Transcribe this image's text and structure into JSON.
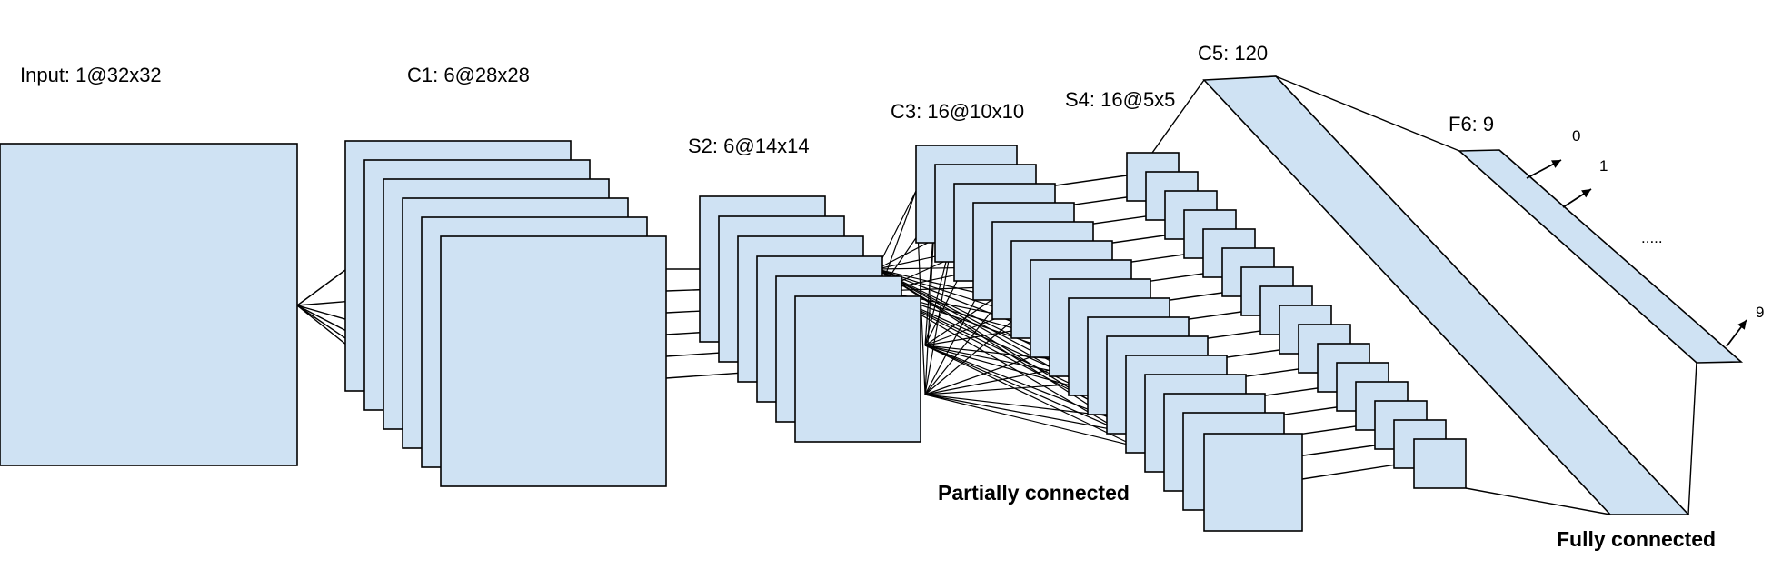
{
  "labels": {
    "input": "Input: 1@32x32",
    "c1": "C1: 6@28x28",
    "s2": "S2: 6@14x14",
    "c3": "C3: 16@10x10",
    "s4": "S4: 16@5x5",
    "c5": "C5: 120",
    "f6": "F6: 9",
    "out0": "0",
    "out1": "1",
    "ellipsis": ".....",
    "out9": "9",
    "partial": "Partially connected",
    "full": "Fully connected"
  },
  "colors": {
    "fill": "#cfe2f3",
    "stroke": "#000000",
    "text": "#000000"
  }
}
